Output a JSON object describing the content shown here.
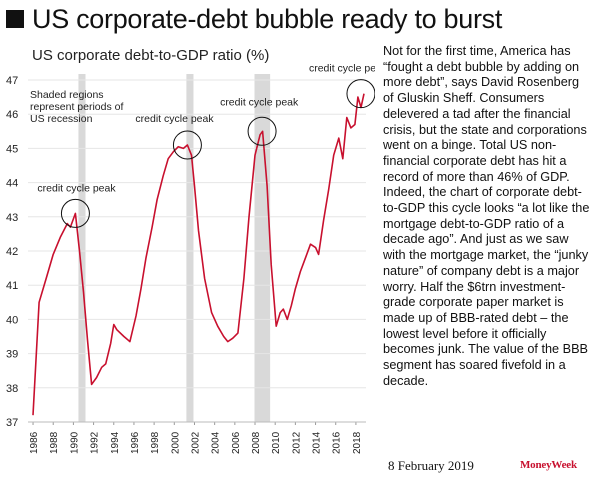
{
  "headline": "US corporate-debt bubble ready to burst",
  "body_text": "Not for the first time, America has “fought a debt bubble by adding on more debt”, says David Rosenberg of Gluskin Sheff. Consumers delevered a tad after the financial crisis, but the state and corporations went on a binge. Total US non-financial corporate debt has hit a record of more than 46% of GDP. Indeed, the chart of corporate debt-to-GDP this cycle looks “a lot like the mortgage debt-to-GDP ratio of a decade ago”. And just as we saw with the mortgage market, the “junky nature” of company debt is a major worry. Half the $6trn investment-grade corporate paper market is made up of BBB-rated debt – the lowest level before it officially becomes junk. The value of the BBB segment has soared fivefold in a decade.",
  "footer": {
    "date": "8 February 2019",
    "brand": "MoneyWeek"
  },
  "colors": {
    "line": "#c8102e",
    "shade": "#d9d9d9",
    "grid": "#e6e6e6",
    "text": "#111111"
  },
  "chart_data": {
    "type": "line",
    "title": "US corporate debt-to-GDP ratio (%)",
    "xlim": [
      1985.5,
      2019.0
    ],
    "ylim": [
      37,
      47
    ],
    "yticks": [
      37,
      38,
      39,
      40,
      41,
      42,
      43,
      44,
      45,
      46,
      47
    ],
    "xticks": [
      "1986",
      "1988",
      "1990",
      "1992",
      "1994",
      "1996",
      "1998",
      "2000",
      "2002",
      "2004",
      "2006",
      "2008",
      "2010",
      "2012",
      "2014",
      "2016",
      "2018"
    ],
    "recession_note": "Shaded regions represent periods of US recession",
    "recessions": [
      [
        1990.5,
        1991.2
      ],
      [
        2001.2,
        2001.9
      ],
      [
        2007.95,
        2009.5
      ]
    ],
    "annotations": [
      {
        "label": "credit cycle peak",
        "x": 1990.2,
        "y": 43.1
      },
      {
        "label": "credit cycle peak",
        "x": 2001.3,
        "y": 45.1
      },
      {
        "label": "credit cycle peak",
        "x": 2008.7,
        "y": 45.5
      },
      {
        "label": "credit cycle peak",
        "x": 2018.5,
        "y": 46.6
      }
    ],
    "series": [
      {
        "x": [
          1986.0,
          1986.6,
          1987.3,
          1988.0,
          1988.7,
          1989.4,
          1989.7,
          1990.2,
          1990.6,
          1991.0,
          1991.4,
          1991.8,
          1992.3,
          1992.8,
          1993.2,
          1993.7,
          1994.0,
          1994.3,
          1995.0,
          1995.6,
          1996.2,
          1996.7,
          1997.2,
          1997.8,
          1998.3,
          1998.9,
          1999.4,
          1999.9,
          2000.4,
          2000.9,
          2001.3,
          2001.7,
          2002.0,
          2002.4,
          2003.0,
          2003.7,
          2004.3,
          2004.9,
          2005.3,
          2005.8,
          2006.3,
          2006.9,
          2007.4,
          2008.0,
          2008.5,
          2008.75,
          2009.2,
          2009.6,
          2010.1,
          2010.5,
          2010.8,
          2011.2,
          2011.6,
          2012.0,
          2012.5,
          2013.0,
          2013.5,
          2014.0,
          2014.3,
          2014.8,
          2015.3,
          2015.8,
          2016.3,
          2016.7,
          2017.1,
          2017.5,
          2017.9,
          2018.2,
          2018.5,
          2018.8
        ],
        "values": [
          37.2,
          40.5,
          41.2,
          41.9,
          42.4,
          42.8,
          42.7,
          43.1,
          42.0,
          40.8,
          39.4,
          38.1,
          38.3,
          38.6,
          38.7,
          39.3,
          39.85,
          39.7,
          39.5,
          39.35,
          40.1,
          40.9,
          41.8,
          42.7,
          43.5,
          44.2,
          44.7,
          44.9,
          45.05,
          45.0,
          45.1,
          44.8,
          43.9,
          42.6,
          41.2,
          40.2,
          39.8,
          39.5,
          39.35,
          39.45,
          39.6,
          41.2,
          43.0,
          44.8,
          45.4,
          45.5,
          43.9,
          41.6,
          39.8,
          40.2,
          40.3,
          40.0,
          40.4,
          40.9,
          41.4,
          41.8,
          42.2,
          42.1,
          41.9,
          42.9,
          43.8,
          44.8,
          45.3,
          44.7,
          45.9,
          45.6,
          45.7,
          46.5,
          46.2,
          46.6
        ]
      }
    ]
  }
}
